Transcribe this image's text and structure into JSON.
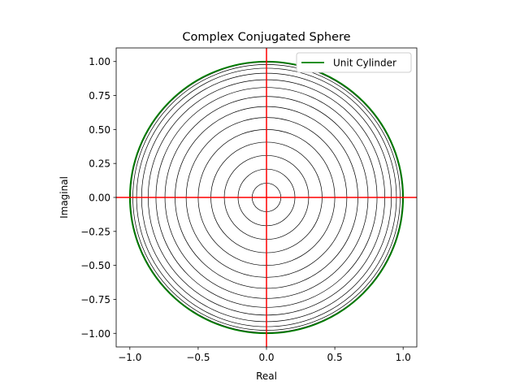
{
  "chart_data": {
    "type": "line",
    "title": "Complex Conjugated Sphere",
    "xlabel": "Real",
    "ylabel": "Imaginal",
    "xlim": [
      -1.1,
      1.1
    ],
    "ylim": [
      -1.1,
      1.1
    ],
    "xticks": [
      -1.0,
      -0.5,
      0.0,
      0.5,
      1.0
    ],
    "xtick_labels": [
      "−1.0",
      "−0.5",
      "0.0",
      "0.5",
      "1.0"
    ],
    "yticks": [
      -1.0,
      -0.75,
      -0.5,
      -0.25,
      0.0,
      0.25,
      0.5,
      0.75,
      1.0
    ],
    "ytick_labels": [
      "−1.00",
      "−0.75",
      "−0.50",
      "−0.25",
      "0.00",
      "0.25",
      "0.50",
      "0.75",
      "1.00"
    ],
    "circle_radii": [
      0.105,
      0.208,
      0.309,
      0.407,
      0.5,
      0.588,
      0.669,
      0.743,
      0.809,
      0.866,
      0.914,
      0.951,
      0.978,
      0.995
    ],
    "circle_color": "#000000",
    "unit_circle": {
      "name": "Unit Cylinder",
      "radius": 1.0,
      "color": "#008000"
    },
    "axis_lines": {
      "color": "#ff0000",
      "x": 0,
      "y": 0
    },
    "legend_placement": "upper-right",
    "grid": false
  }
}
